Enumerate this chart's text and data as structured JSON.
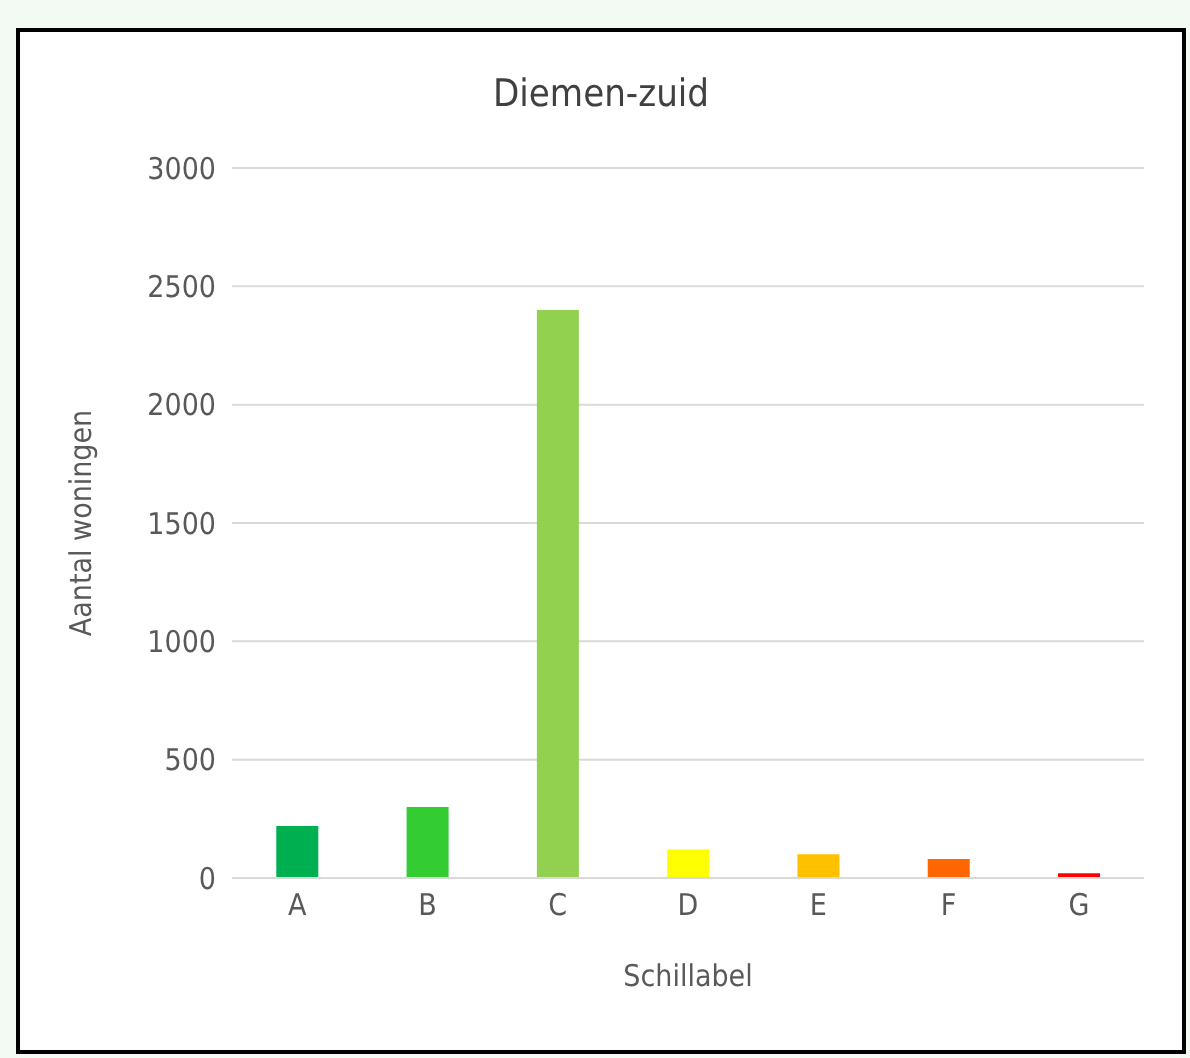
{
  "chart_data": {
    "type": "bar",
    "title": "Diemen-zuid",
    "xlabel": "Schillabel",
    "ylabel": "Aantal woningen",
    "categories": [
      "A",
      "B",
      "C",
      "D",
      "E",
      "F",
      "G"
    ],
    "values": [
      220,
      300,
      2400,
      120,
      100,
      80,
      20
    ],
    "colors": [
      "#00b050",
      "#33cc33",
      "#92d050",
      "#ffff00",
      "#ffc000",
      "#ff6600",
      "#ff0000"
    ],
    "ylim": [
      0,
      3000
    ],
    "yticks": [
      0,
      500,
      1000,
      1500,
      2000,
      2500,
      3000
    ],
    "grid": "y"
  }
}
